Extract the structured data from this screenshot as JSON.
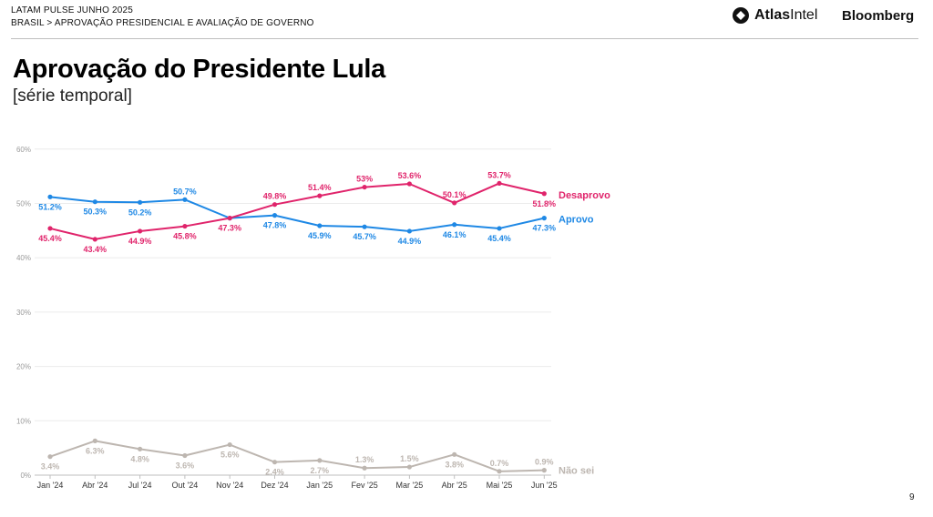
{
  "header": {
    "line1": "LATAM PULSE JUNHO 2025",
    "line2": "BRASIL > APROVAÇÃO PRESIDENCIAL E AVALIAÇÃO DE GOVERNO",
    "brand_atlas_bold": "Atlas",
    "brand_atlas_light": "Intel",
    "brand_bloomberg": "Bloomberg"
  },
  "page_number": "9",
  "chart_data": {
    "type": "line",
    "title": "Aprovação do Presidente Lula",
    "subtitle": "[série temporal]",
    "categories": [
      "Jan '24",
      "Abr '24",
      "Jul '24",
      "Out '24",
      "Nov '24",
      "Dez '24",
      "Jan '25",
      "Fev '25",
      "Mar '25",
      "Abr '25",
      "Mai '25",
      "Jun '25"
    ],
    "yticks": [
      "0%",
      "10%",
      "20%",
      "30%",
      "40%",
      "50%",
      "60%"
    ],
    "ylim": [
      0,
      60
    ],
    "grid": true,
    "series": [
      {
        "name": "Aprovo",
        "color": "#1e88e5",
        "values": [
          51.2,
          50.3,
          50.2,
          50.7,
          47.3,
          47.8,
          45.9,
          45.7,
          44.9,
          46.1,
          45.4,
          47.3
        ],
        "labels": [
          "51.2%",
          "50.3%",
          "50.2%",
          "50.7%",
          "",
          "47.8%",
          "45.9%",
          "45.7%",
          "44.9%",
          "46.1%",
          "45.4%",
          "47.3%"
        ]
      },
      {
        "name": "Desaprovo",
        "color": "#e0246b",
        "values": [
          45.4,
          43.4,
          44.9,
          45.8,
          47.3,
          49.8,
          51.4,
          53,
          53.6,
          50.1,
          53.7,
          51.8
        ],
        "labels": [
          "45.4%",
          "43.4%",
          "44.9%",
          "45.8%",
          "47.3%",
          "49.8%",
          "51.4%",
          "53%",
          "53.6%",
          "50.1%",
          "53.7%",
          "51.8%"
        ]
      },
      {
        "name": "Não sei",
        "color": "#bdb6b0",
        "values": [
          3.4,
          6.3,
          4.8,
          3.6,
          5.6,
          2.4,
          2.7,
          1.3,
          1.5,
          3.8,
          0.7,
          0.9
        ],
        "labels": [
          "3.4%",
          "6.3%",
          "4.8%",
          "3.6%",
          "5.6%",
          "2.4%",
          "2.7%",
          "1.3%",
          "1.5%",
          "3.8%",
          "0.7%",
          "0.9%"
        ]
      }
    ]
  }
}
